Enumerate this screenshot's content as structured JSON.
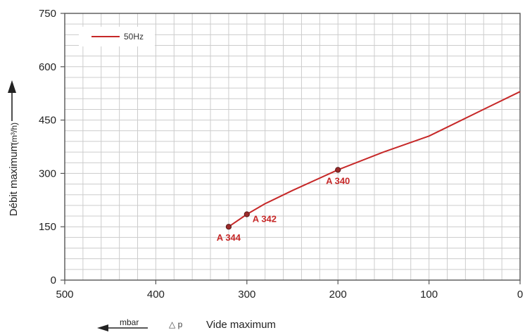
{
  "chart_data": {
    "type": "line",
    "title": "",
    "xlabel": "Vide maximum",
    "ylabel": "Débit maximum",
    "ylabel_unit": "(m³/h)",
    "xlabel_unit": "mbar",
    "xlabel_symbol": "△ p",
    "x_reversed": true,
    "xlim": [
      0,
      500
    ],
    "ylim": [
      0,
      750
    ],
    "x_ticks": [
      500,
      400,
      300,
      200,
      100,
      0
    ],
    "y_ticks": [
      0,
      150,
      300,
      450,
      600,
      750
    ],
    "grid": true,
    "legend_position": "top-left",
    "series": [
      {
        "name": "50Hz",
        "color": "#c62828",
        "points": [
          {
            "x": 320,
            "y": 150
          },
          {
            "x": 300,
            "y": 185
          },
          {
            "x": 280,
            "y": 215
          },
          {
            "x": 250,
            "y": 252
          },
          {
            "x": 200,
            "y": 310
          },
          {
            "x": 150,
            "y": 360
          },
          {
            "x": 100,
            "y": 405
          },
          {
            "x": 80,
            "y": 430
          },
          {
            "x": 40,
            "y": 480
          },
          {
            "x": 0,
            "y": 530
          }
        ]
      }
    ],
    "annotations": [
      {
        "label": "A 344",
        "x": 320,
        "y": 150,
        "placement": "below"
      },
      {
        "label": "A 342",
        "x": 300,
        "y": 185,
        "placement": "right"
      },
      {
        "label": "A 340",
        "x": 200,
        "y": 310,
        "placement": "below"
      }
    ],
    "colors": {
      "line": "#c62828",
      "marker": "#9b2a2a",
      "annotation": "#c62828",
      "grid": "#cccccc",
      "axis": "#555555"
    }
  }
}
